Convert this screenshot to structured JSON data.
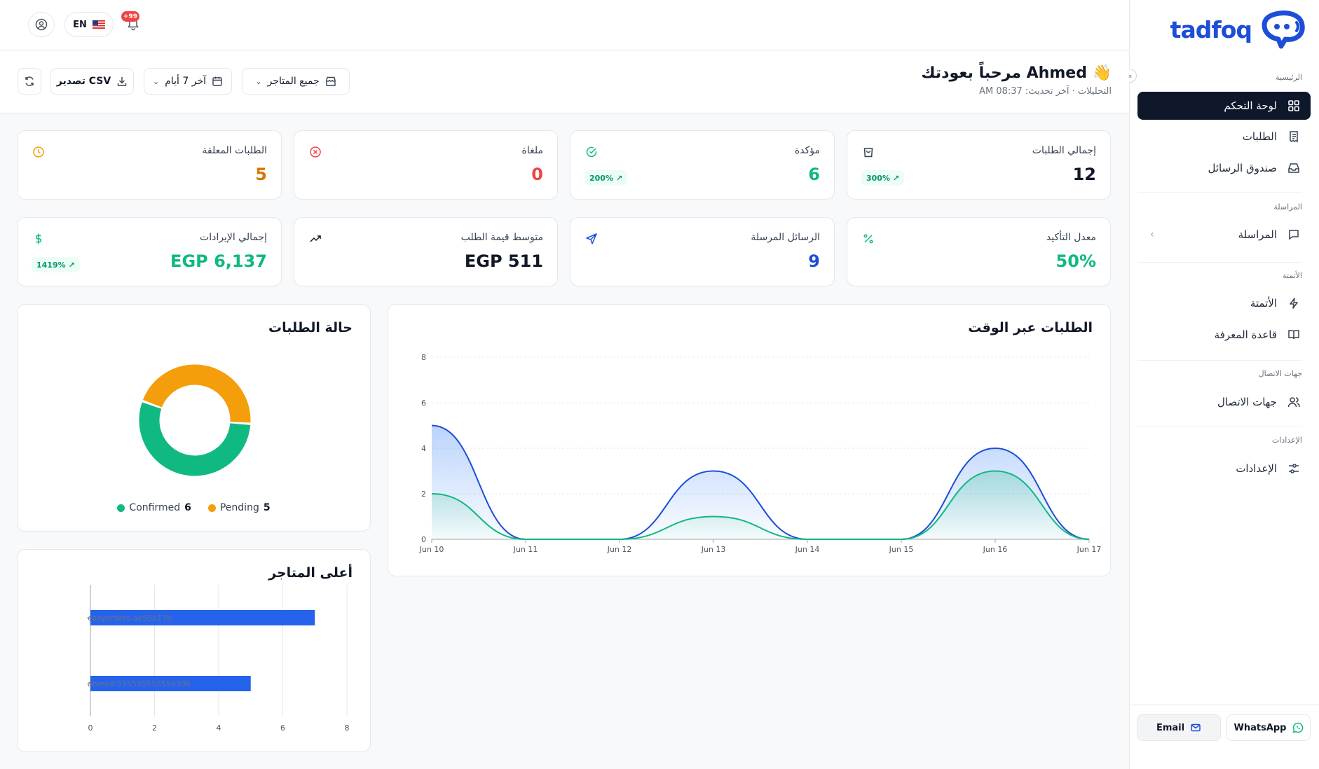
{
  "sidebar": {
    "brand": "tadfoq",
    "collapse_icon": "«",
    "sections": [
      {
        "label": "الرئيسية"
      },
      {
        "label": "المراسلة"
      },
      {
        "label": "الأتمتة"
      },
      {
        "label": "جهات الاتصال"
      },
      {
        "label": "الإعدادات"
      }
    ],
    "items": [
      {
        "label": "لوحة التحكم",
        "icon": "grid-icon",
        "active": true
      },
      {
        "label": "الطلبات",
        "icon": "receipt-icon"
      },
      {
        "label": "صندوق الرسائل",
        "icon": "inbox-icon"
      },
      {
        "label": "المراسلة",
        "icon": "message-icon"
      },
      {
        "label": "الأتمتة",
        "icon": "bolt-icon"
      },
      {
        "label": "قاعدة المعرفة",
        "icon": "book-icon"
      },
      {
        "label": "جهات الاتصال",
        "icon": "users-icon"
      },
      {
        "label": "الإعدادات",
        "icon": "sliders-icon"
      }
    ],
    "footer": {
      "email_label": "Email",
      "whatsapp_label": "WhatsApp"
    }
  },
  "topbar": {
    "language": "EN",
    "notifications_badge": "+99"
  },
  "header": {
    "welcome": "مرحباً بعودتك Ahmed 👋",
    "breadcrumb": "التحليلات",
    "updated": "· آخر تحديث: 08:37 AM",
    "store_filter": "جميع المتاجر",
    "date_filter": "آخر 7 أيام",
    "export_label": "تصدير CSV"
  },
  "stats": [
    {
      "label": "إجمالي الطلبات",
      "value": "12",
      "trend": "300%",
      "color": "#111827"
    },
    {
      "label": "مؤكدة",
      "value": "6",
      "trend": "200%",
      "color": "#10b981"
    },
    {
      "label": "ملغاة",
      "value": "0",
      "color": "#ef4444"
    },
    {
      "label": "الطلبات المعلقة",
      "value": "5",
      "color": "#d97706"
    },
    {
      "label": "معدل التأكيد",
      "value": "50%",
      "color": "#10b981"
    },
    {
      "label": "الرسائل المرسلة",
      "value": "9",
      "color": "#1d4ed8"
    },
    {
      "label": "متوسط قيمة الطلب",
      "value": "EGP 511",
      "color": "#111827"
    },
    {
      "label": "إجمالي الإيرادات",
      "value": "EGP 6,137",
      "trend": "1419%",
      "color": "#10b981"
    }
  ],
  "charts": {
    "orders_over_time_title": "الطلبات عبر الوقت",
    "order_status_title": "حالة الطلبات",
    "top_stores_title": "أعلى المتاجر",
    "status_legend": [
      {
        "name": "Confirmed",
        "value": "6",
        "color": "#10b981"
      },
      {
        "name": "Pending",
        "value": "5",
        "color": "#f59e0b"
      }
    ]
  },
  "chart_data": [
    {
      "type": "area",
      "title": "الطلبات عبر الوقت",
      "categories": [
        "Jun 10",
        "Jun 11",
        "Jun 12",
        "Jun 13",
        "Jun 14",
        "Jun 15",
        "Jun 16",
        "Jun 17"
      ],
      "ylim": [
        0,
        8
      ],
      "yticks": [
        0,
        2,
        4,
        6,
        8
      ],
      "grid": true,
      "series": [
        {
          "values": [
            5,
            0,
            0,
            3,
            0,
            0,
            4,
            0
          ],
          "color": "#1d4ed8"
        },
        {
          "values": [
            2,
            0,
            0,
            1,
            0,
            0,
            3,
            0
          ],
          "color": "#10b981"
        }
      ]
    },
    {
      "type": "pie",
      "title": "حالة الطلبات",
      "labels": [
        "Confirmed",
        "Pending"
      ],
      "values": [
        6,
        5
      ],
      "colors": [
        "#10b981",
        "#f59e0b"
      ]
    },
    {
      "type": "bar",
      "orientation": "horizontal",
      "title": "أعلى المتاجر",
      "categories": [
        "easyorders-ae55b17b",
        "ahmed-555555555556306"
      ],
      "values": [
        7,
        5
      ],
      "xlim": [
        0,
        8
      ],
      "xticks": [
        0,
        2,
        4,
        6,
        8
      ],
      "color": "#2563eb"
    }
  ]
}
